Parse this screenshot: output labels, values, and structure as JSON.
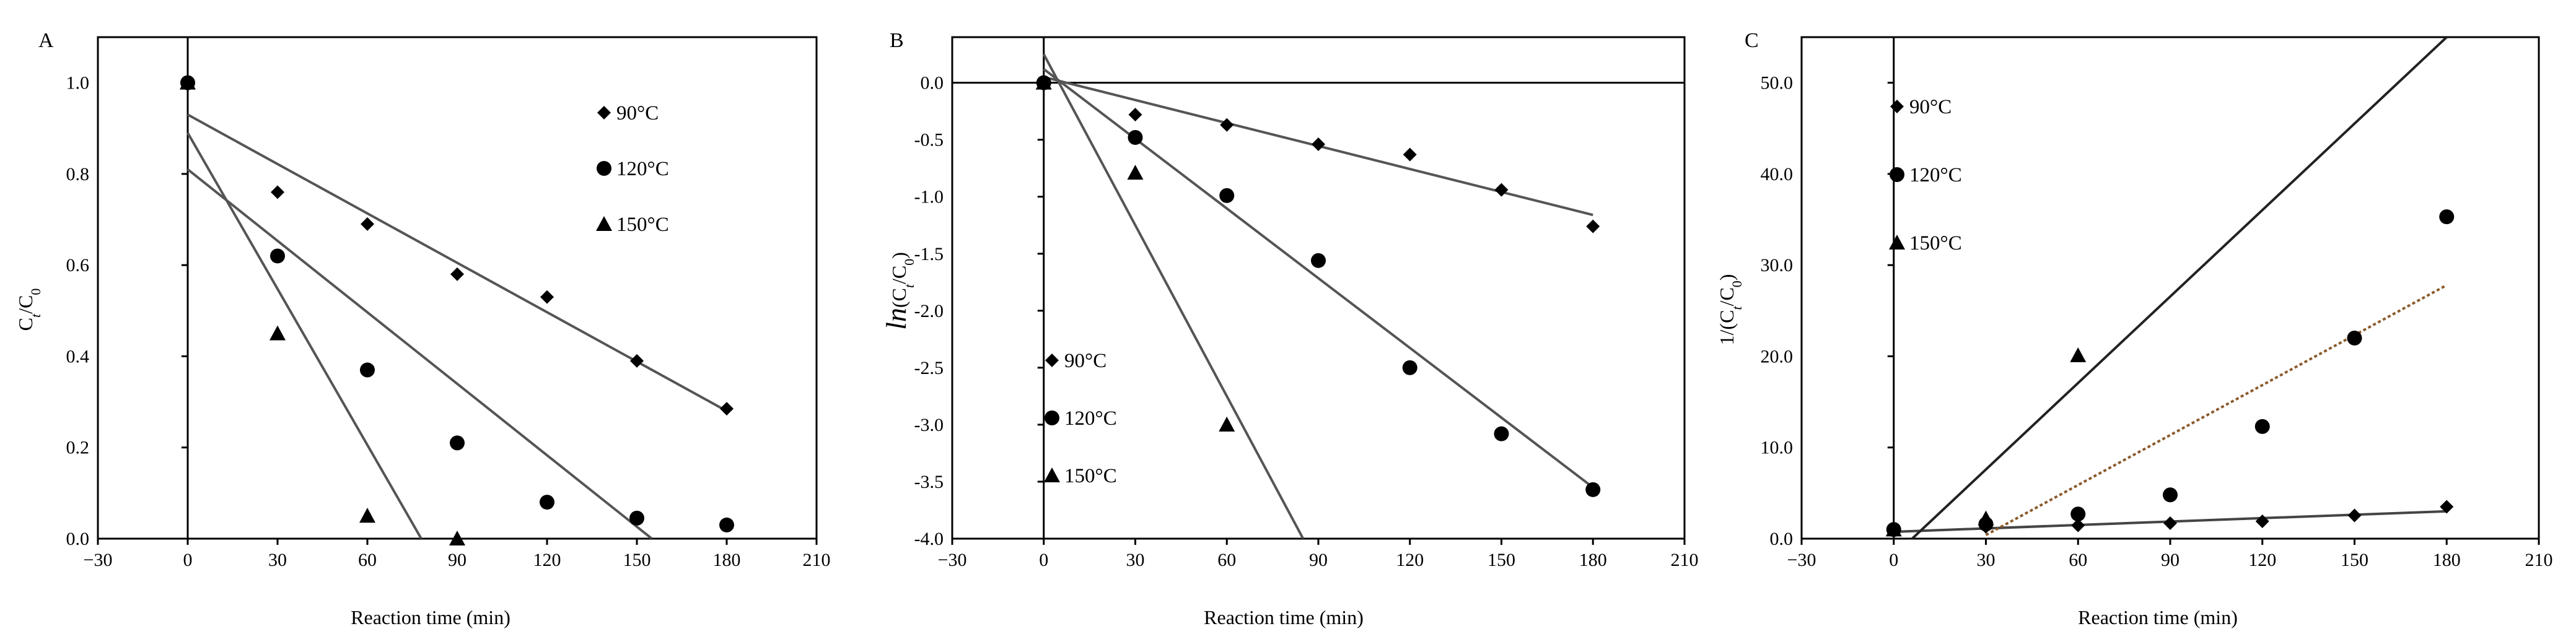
{
  "chart_data": [
    {
      "panel": "A",
      "type": "scatter",
      "xlabel": "Reaction time (min)",
      "ylabel_main": "C",
      "ylabel_sub1": "t",
      "ylabel_slash": "/C",
      "ylabel_sub2": "0",
      "xlim": [
        -30,
        210
      ],
      "ylim": [
        0,
        1.1
      ],
      "xticks": [
        -30,
        0,
        30,
        60,
        90,
        120,
        150,
        180,
        210
      ],
      "yticks": [
        0.0,
        0.2,
        0.4,
        0.6,
        0.8,
        1.0
      ],
      "ytick_labels": [
        "0.0",
        "0.2",
        "0.4",
        "0.6",
        "0.8",
        "1.0"
      ],
      "series": [
        {
          "name": "90°C",
          "marker": "diamond",
          "x": [
            0,
            30,
            60,
            90,
            120,
            150,
            180
          ],
          "y": [
            1.0,
            0.76,
            0.69,
            0.58,
            0.53,
            0.39,
            0.285
          ]
        },
        {
          "name": "120°C",
          "marker": "circle",
          "x": [
            0,
            30,
            60,
            90,
            120,
            150,
            180
          ],
          "y": [
            1.0,
            0.62,
            0.37,
            0.21,
            0.08,
            0.045,
            0.03
          ]
        },
        {
          "name": "150°C",
          "marker": "triangle",
          "x": [
            0,
            30,
            60,
            90
          ],
          "y": [
            1.0,
            0.45,
            0.05,
            0.0
          ]
        }
      ],
      "fits": [
        {
          "series": "90°C",
          "x": [
            0,
            180
          ],
          "y": [
            0.93,
            0.28
          ],
          "color": "#555555"
        },
        {
          "series": "120°C",
          "x": [
            0,
            155
          ],
          "y": [
            0.81,
            0.0
          ],
          "color": "#555555"
        },
        {
          "series": "150°C",
          "x": [
            0,
            78
          ],
          "y": [
            0.89,
            0.0
          ],
          "color": "#555555"
        }
      ]
    },
    {
      "panel": "B",
      "type": "scatter",
      "xlabel": "Reaction time (min)",
      "ylabel_ln": "ln",
      "ylabel_paren_open": "(C",
      "ylabel_sub1": "t",
      "ylabel_slash": "/C",
      "ylabel_sub2": "0",
      "ylabel_paren_close": ")",
      "xlim": [
        -30,
        210
      ],
      "ylim": [
        -4.0,
        0.4
      ],
      "xticks": [
        -30,
        0,
        30,
        60,
        90,
        120,
        150,
        180,
        210
      ],
      "yticks": [
        -4.0,
        -3.5,
        -3.0,
        -2.5,
        -2.0,
        -1.5,
        -1.0,
        -0.5,
        0.0
      ],
      "ytick_labels": [
        "-4.0",
        "-3.5",
        "-3.0",
        "-2.5",
        "-2.0",
        "-1.5",
        "-1.0",
        "-0.5",
        "0.0"
      ],
      "series": [
        {
          "name": "90°C",
          "marker": "diamond",
          "x": [
            0,
            30,
            60,
            90,
            120,
            150,
            180
          ],
          "y": [
            0.0,
            -0.28,
            -0.37,
            -0.54,
            -0.63,
            -0.94,
            -1.26
          ]
        },
        {
          "name": "120°C",
          "marker": "circle",
          "x": [
            0,
            30,
            60,
            90,
            120,
            150,
            180
          ],
          "y": [
            0.0,
            -0.48,
            -0.99,
            -1.56,
            -2.5,
            -3.08,
            -3.57
          ]
        },
        {
          "name": "150°C",
          "marker": "triangle",
          "x": [
            0,
            30,
            60
          ],
          "y": [
            0.0,
            -0.79,
            -3.0
          ]
        }
      ],
      "fits": [
        {
          "series": "90°C",
          "x": [
            0,
            180
          ],
          "y": [
            0.05,
            -1.16
          ],
          "color": "#555555"
        },
        {
          "series": "120°C",
          "x": [
            0,
            180
          ],
          "y": [
            0.12,
            -3.55
          ],
          "color": "#555555"
        },
        {
          "series": "150°C",
          "x": [
            0,
            85
          ],
          "y": [
            0.25,
            -4.0
          ],
          "color": "#555555"
        }
      ]
    },
    {
      "panel": "C",
      "type": "scatter",
      "xlabel": "Reaction time (min)",
      "ylabel_prefix": "1/(C",
      "ylabel_sub1": "t",
      "ylabel_slash": "/C",
      "ylabel_sub2": "0",
      "ylabel_paren_close": ")",
      "xlim": [
        -30,
        210
      ],
      "ylim": [
        0,
        55
      ],
      "xticks": [
        -30,
        0,
        30,
        60,
        90,
        120,
        150,
        180,
        210
      ],
      "yticks": [
        0,
        10,
        20,
        30,
        40,
        50
      ],
      "ytick_labels": [
        "0.0",
        "10.0",
        "20.0",
        "30.0",
        "40.0",
        "50.0"
      ],
      "series": [
        {
          "name": "90°C",
          "marker": "diamond",
          "x": [
            0,
            30,
            60,
            90,
            120,
            150,
            180
          ],
          "y": [
            1.0,
            1.3,
            1.45,
            1.7,
            1.9,
            2.55,
            3.5
          ]
        },
        {
          "name": "120°C",
          "marker": "circle",
          "x": [
            0,
            30,
            60,
            90,
            120,
            150,
            180
          ],
          "y": [
            1.0,
            1.6,
            2.7,
            4.8,
            12.3,
            22.0,
            35.3
          ]
        },
        {
          "name": "150°C",
          "marker": "triangle",
          "x": [
            0,
            30,
            60
          ],
          "y": [
            1.0,
            2.2,
            20.1
          ]
        }
      ],
      "fits": [
        {
          "series": "90°C",
          "x": [
            0,
            180
          ],
          "y": [
            0.75,
            3.0
          ],
          "color": "#444444"
        },
        {
          "series": "120°C",
          "x": [
            30,
            180
          ],
          "y": [
            0.4,
            27.8
          ],
          "color": "#8B5A2B",
          "dashed": true
        },
        {
          "series": "150°C",
          "x": [
            6,
            180
          ],
          "y": [
            0.0,
            55.0
          ],
          "color": "#222222"
        }
      ]
    }
  ]
}
